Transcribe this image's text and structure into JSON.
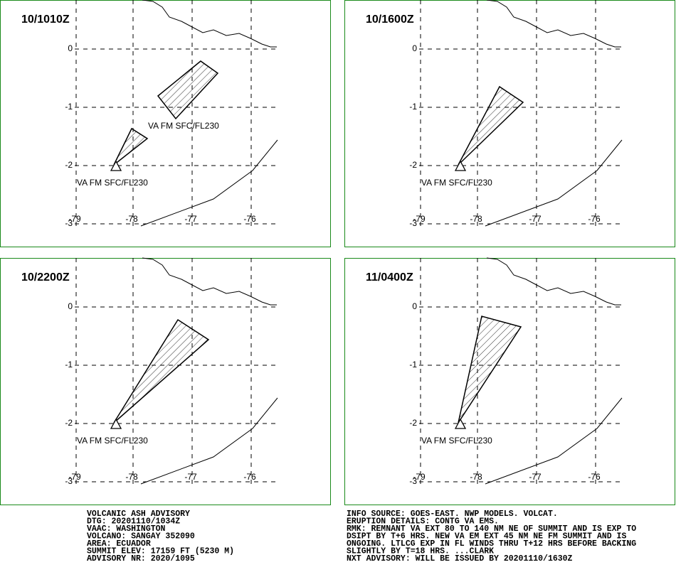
{
  "grid": {
    "lat_labels": [
      "0",
      "-1",
      "-2",
      "-3"
    ],
    "lon_labels": [
      "-79",
      "-78",
      "-77",
      "-76"
    ]
  },
  "panels": [
    {
      "time": "10/1010Z",
      "labels": [
        "VA FM SFC/FL230",
        "VA FM SFC/FL230"
      ]
    },
    {
      "time": "10/1600Z",
      "labels": [
        "VA FM SFC/FL230"
      ]
    },
    {
      "time": "10/2200Z",
      "labels": [
        "VA FM SFC/FL230"
      ]
    },
    {
      "time": "11/0400Z",
      "labels": [
        "VA FM SFC/FL230"
      ]
    }
  ],
  "advisory_left": [
    "VOLCANIC ASH ADVISORY",
    "DTG: 20201110/1034Z",
    "VAAC: WASHINGTON",
    "VOLCANO: SANGAY 352090",
    "AREA: ECUADOR",
    "SUMMIT ELEV: 17159 FT (5230 M)",
    "ADVISORY NR: 2020/1095"
  ],
  "advisory_right": [
    "INFO SOURCE: GOES-EAST. NWP MODELS. VOLCAT.",
    "ERUPTION DETAILS: CONTG VA EMS.",
    "RMK: REMNANT VA EXT 80 TO 140 NM NE OF SUMMIT AND IS EXP TO",
    "DSIPT BY T+6 HRS. NEW VA EM EXT 45 NM NE FM SUMMIT AND IS",
    "ONGOING. LTLCG EXP IN FL WINDS THRU T+12 HRS BEFORE BACKING",
    "SLIGHTLY BY T=18 HRS. ...CLARK",
    "NXT ADVISORY: WILL BE ISSUED BY 20201110/1630Z"
  ]
}
